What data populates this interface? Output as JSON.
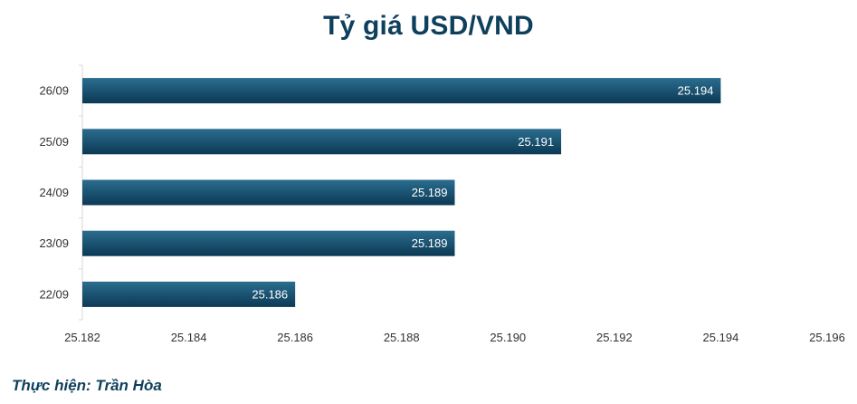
{
  "chart_data": {
    "type": "bar",
    "orientation": "horizontal",
    "title": "Tỷ giá USD/VND",
    "categories": [
      "26/09",
      "25/09",
      "24/09",
      "23/09",
      "22/09"
    ],
    "values": [
      25.194,
      25.191,
      25.189,
      25.189,
      25.186
    ],
    "value_labels": [
      "25.194",
      "25.191",
      "25.189",
      "25.189",
      "25.186"
    ],
    "xlim": [
      25.182,
      25.196
    ],
    "xticks": [
      "25.182",
      "25.184",
      "25.186",
      "25.188",
      "25.190",
      "25.192",
      "25.194",
      "25.196"
    ],
    "xtick_values": [
      25.182,
      25.184,
      25.186,
      25.188,
      25.19,
      25.192,
      25.194,
      25.196
    ],
    "grid": false,
    "legend": "none",
    "colors": {
      "bar_top": "#2b6d8f",
      "bar_bottom": "#0b3954",
      "title": "#0e3f5c",
      "axis": "#d9d9d9"
    }
  },
  "footer": {
    "credit": "Thực hiện: Trần Hòa"
  }
}
